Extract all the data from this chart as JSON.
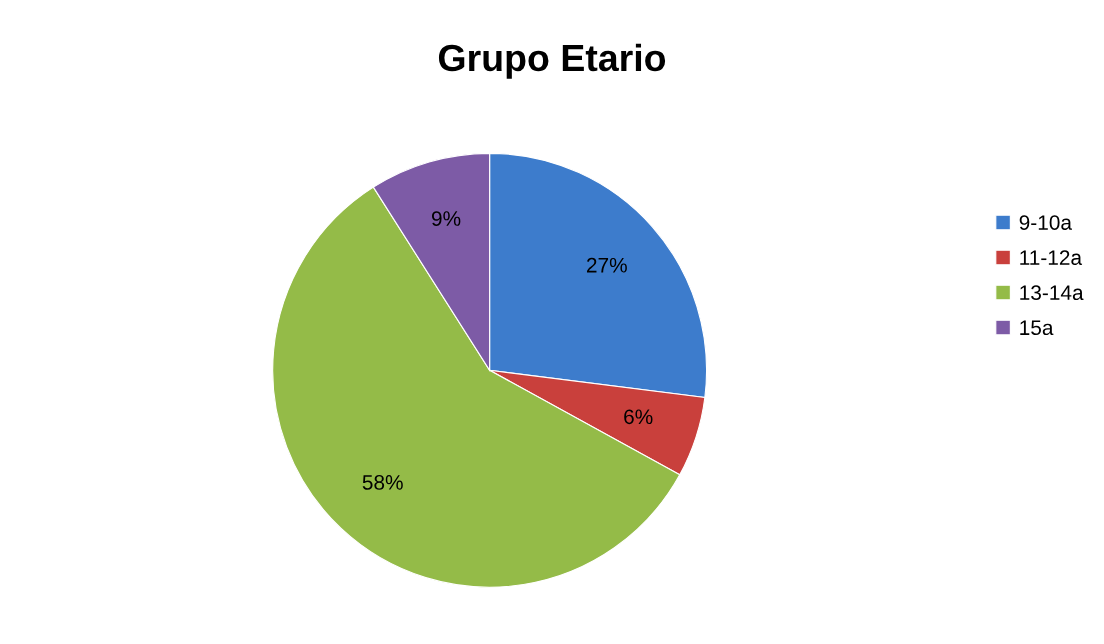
{
  "chart_data": {
    "type": "pie",
    "title": "Grupo Etario",
    "categories": [
      "9-10a",
      "11-12a",
      "13-14a",
      "15a"
    ],
    "values": [
      27,
      6,
      58,
      9
    ],
    "value_labels": [
      "27%",
      "6%",
      "58%",
      "9%"
    ],
    "colors": [
      "#3d7ccc",
      "#c9403c",
      "#94bb48",
      "#7d5ba6"
    ],
    "legend": "right"
  }
}
